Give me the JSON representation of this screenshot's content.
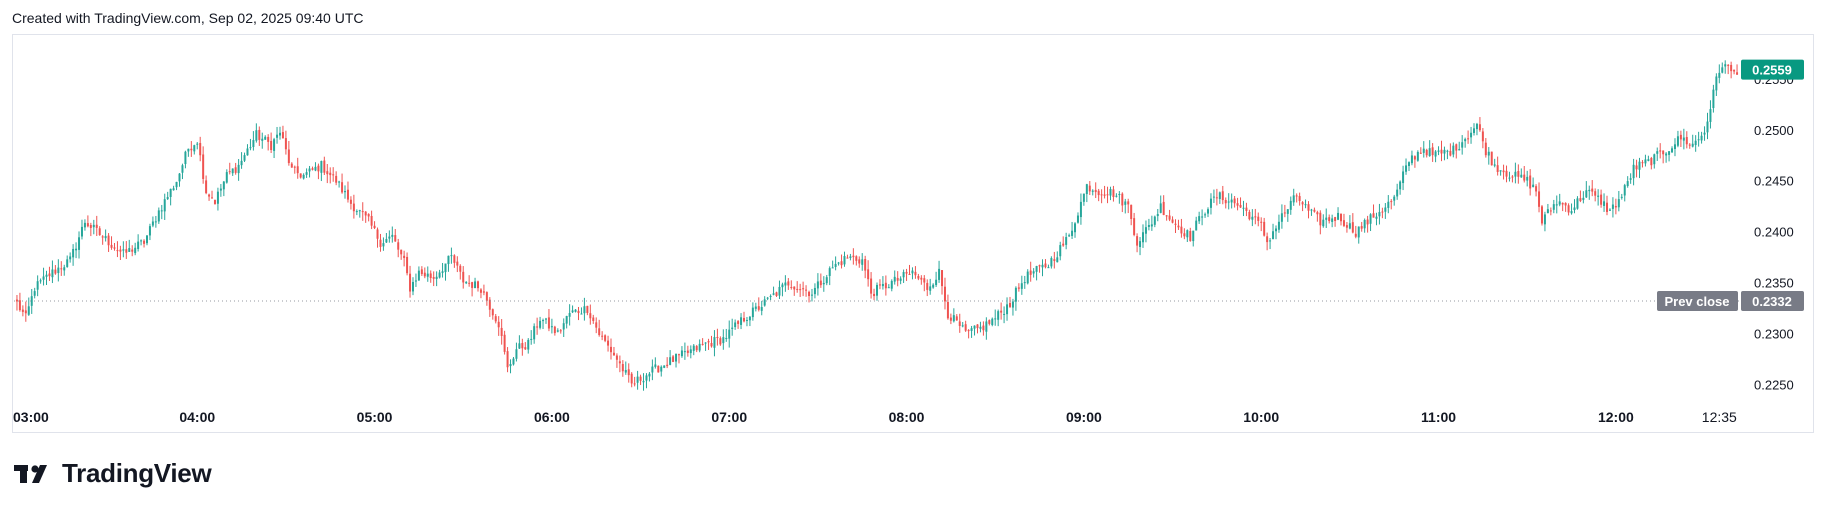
{
  "header": {
    "caption": "Created with TradingView.com, Sep 02, 2025 09:40 UTC"
  },
  "branding": {
    "logo_text": "TradingView"
  },
  "colors": {
    "up": "#26a69a",
    "down": "#ef5350",
    "prev_close_badge": "#787b86",
    "last_price_badge": "#089981"
  },
  "chart_data": {
    "type": "candlestick",
    "interval_minutes": 1,
    "x_tick_labels": [
      "03:00",
      "04:00",
      "05:00",
      "06:00",
      "07:00",
      "08:00",
      "09:00",
      "10:00",
      "11:00",
      "12:00",
      "12:35"
    ],
    "x_range": [
      "02:58",
      "12:42"
    ],
    "ylim": [
      0.223,
      0.259
    ],
    "y_ticks": [
      0.225,
      0.23,
      0.235,
      0.24,
      0.245,
      0.25,
      0.255
    ],
    "y_tick_labels": [
      "0.2250",
      "0.2300",
      "0.2350",
      "0.2400",
      "0.2450",
      "0.2500",
      "0.2550"
    ],
    "prev_close": {
      "label": "Prev close",
      "value": "0.2332"
    },
    "last_price": {
      "value": "0.2559"
    },
    "close_anchors": [
      [
        "02:59",
        0.233
      ],
      [
        "03:02",
        0.2315
      ],
      [
        "03:05",
        0.2345
      ],
      [
        "03:10",
        0.2358
      ],
      [
        "03:17",
        0.2372
      ],
      [
        "03:22",
        0.241
      ],
      [
        "03:30",
        0.239
      ],
      [
        "03:35",
        0.2378
      ],
      [
        "03:42",
        0.239
      ],
      [
        "03:47",
        0.242
      ],
      [
        "03:53",
        0.245
      ],
      [
        "03:57",
        0.2482
      ],
      [
        "04:00",
        0.249
      ],
      [
        "04:03",
        0.244
      ],
      [
        "04:06",
        0.243
      ],
      [
        "04:10",
        0.2455
      ],
      [
        "04:14",
        0.2465
      ],
      [
        "04:20",
        0.2495
      ],
      [
        "04:25",
        0.2485
      ],
      [
        "04:28",
        0.2498
      ],
      [
        "04:32",
        0.246
      ],
      [
        "04:36",
        0.2455
      ],
      [
        "04:42",
        0.2465
      ],
      [
        "04:47",
        0.245
      ],
      [
        "04:52",
        0.2428
      ],
      [
        "04:58",
        0.241
      ],
      [
        "05:02",
        0.239
      ],
      [
        "05:06",
        0.2395
      ],
      [
        "05:10",
        0.237
      ],
      [
        "05:12",
        0.2345
      ],
      [
        "05:15",
        0.236
      ],
      [
        "05:20",
        0.2355
      ],
      [
        "05:26",
        0.2375
      ],
      [
        "05:30",
        0.2352
      ],
      [
        "05:36",
        0.2345
      ],
      [
        "05:42",
        0.231
      ],
      [
        "05:45",
        0.2265
      ],
      [
        "05:48",
        0.2285
      ],
      [
        "05:52",
        0.229
      ],
      [
        "05:56",
        0.2315
      ],
      [
        "06:02",
        0.23
      ],
      [
        "06:06",
        0.232
      ],
      [
        "06:12",
        0.2325
      ],
      [
        "06:16",
        0.23
      ],
      [
        "06:22",
        0.2275
      ],
      [
        "06:27",
        0.225
      ],
      [
        "06:32",
        0.226
      ],
      [
        "06:38",
        0.227
      ],
      [
        "06:45",
        0.228
      ],
      [
        "06:52",
        0.229
      ],
      [
        "06:58",
        0.2295
      ],
      [
        "07:05",
        0.2315
      ],
      [
        "07:12",
        0.233
      ],
      [
        "07:20",
        0.235
      ],
      [
        "07:28",
        0.234
      ],
      [
        "07:35",
        0.2365
      ],
      [
        "07:40",
        0.2375
      ],
      [
        "07:45",
        0.2372
      ],
      [
        "07:48",
        0.234
      ],
      [
        "07:55",
        0.235
      ],
      [
        "08:02",
        0.236
      ],
      [
        "08:07",
        0.2345
      ],
      [
        "08:11",
        0.236
      ],
      [
        "08:14",
        0.232
      ],
      [
        "08:20",
        0.23
      ],
      [
        "08:25",
        0.2305
      ],
      [
        "08:30",
        0.2315
      ],
      [
        "08:35",
        0.233
      ],
      [
        "08:40",
        0.2355
      ],
      [
        "08:48",
        0.2368
      ],
      [
        "08:55",
        0.2395
      ],
      [
        "08:58",
        0.242
      ],
      [
        "09:01",
        0.2445
      ],
      [
        "09:05",
        0.244
      ],
      [
        "09:10",
        0.2438
      ],
      [
        "09:15",
        0.2425
      ],
      [
        "09:18",
        0.239
      ],
      [
        "09:22",
        0.2405
      ],
      [
        "09:26",
        0.2425
      ],
      [
        "09:30",
        0.241
      ],
      [
        "09:36",
        0.2395
      ],
      [
        "09:40",
        0.2418
      ],
      [
        "09:45",
        0.2435
      ],
      [
        "09:50",
        0.243
      ],
      [
        "09:55",
        0.242
      ],
      [
        "10:00",
        0.2405
      ],
      [
        "10:02",
        0.239
      ],
      [
        "10:07",
        0.2415
      ],
      [
        "10:12",
        0.2435
      ],
      [
        "10:16",
        0.242
      ],
      [
        "10:20",
        0.241
      ],
      [
        "10:26",
        0.2415
      ],
      [
        "10:32",
        0.24
      ],
      [
        "10:36",
        0.241
      ],
      [
        "10:40",
        0.242
      ],
      [
        "10:45",
        0.2432
      ],
      [
        "10:50",
        0.247
      ],
      [
        "10:55",
        0.2482
      ],
      [
        "10:58",
        0.2475
      ],
      [
        "11:05",
        0.248
      ],
      [
        "11:10",
        0.2495
      ],
      [
        "11:13",
        0.2505
      ],
      [
        "11:16",
        0.248
      ],
      [
        "11:19",
        0.2465
      ],
      [
        "11:25",
        0.2455
      ],
      [
        "11:30",
        0.245
      ],
      [
        "11:33",
        0.244
      ],
      [
        "11:35",
        0.241
      ],
      [
        "11:40",
        0.243
      ],
      [
        "11:45",
        0.2422
      ],
      [
        "11:50",
        0.244
      ],
      [
        "11:55",
        0.243
      ],
      [
        "11:58",
        0.242
      ],
      [
        "12:02",
        0.2435
      ],
      [
        "12:06",
        0.2462
      ],
      [
        "12:12",
        0.247
      ],
      [
        "12:17",
        0.248
      ],
      [
        "12:22",
        0.2492
      ],
      [
        "12:26",
        0.2485
      ],
      [
        "12:30",
        0.2498
      ],
      [
        "12:33",
        0.2535
      ],
      [
        "12:34",
        0.255
      ],
      [
        "12:36",
        0.2565
      ],
      [
        "12:38",
        0.256
      ],
      [
        "12:40",
        0.2555
      ],
      [
        "12:41",
        0.2559
      ]
    ]
  }
}
